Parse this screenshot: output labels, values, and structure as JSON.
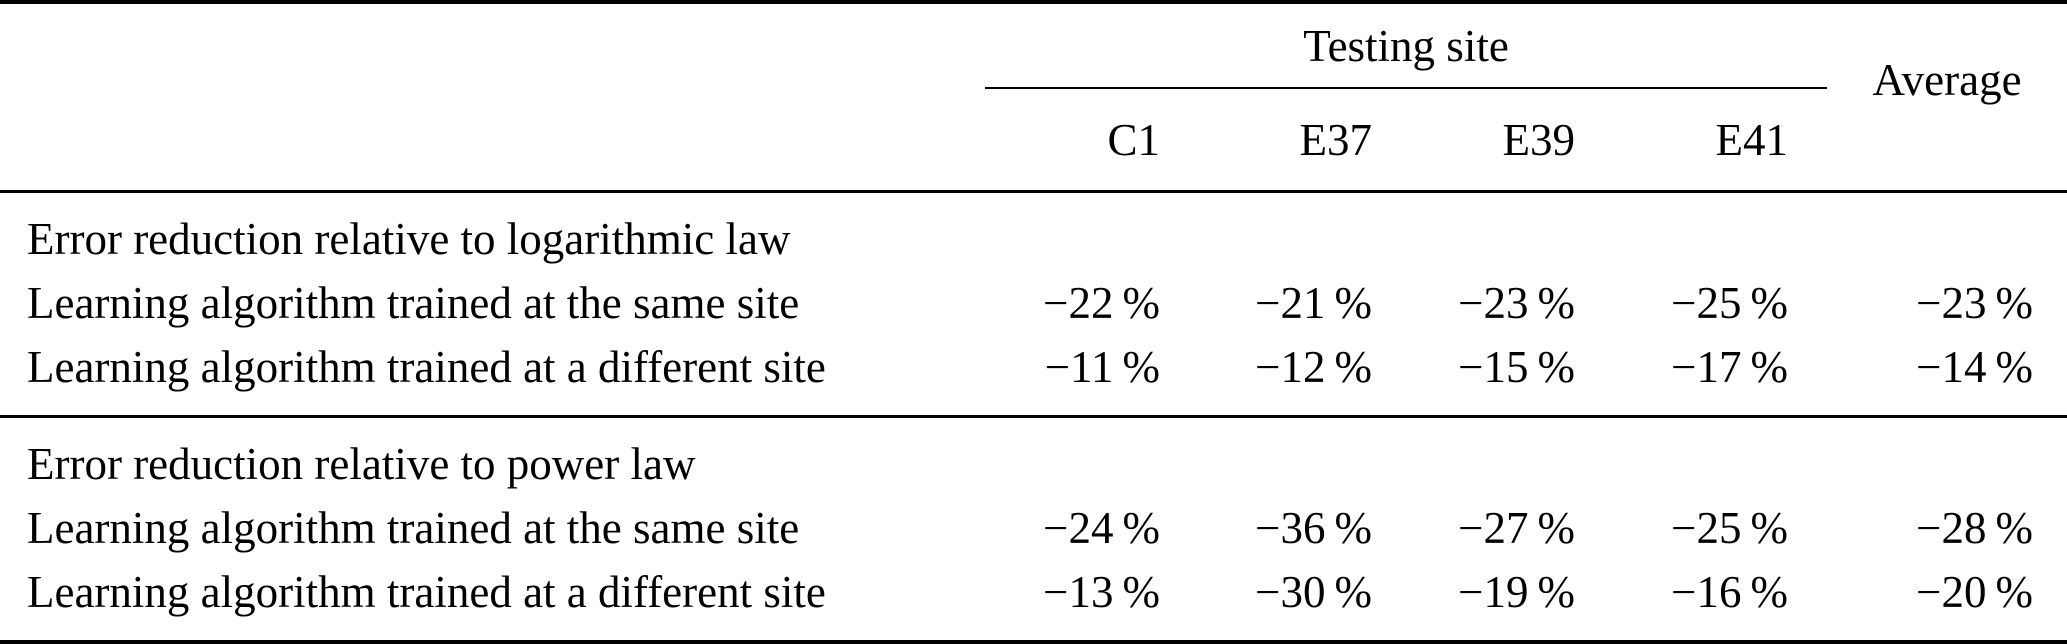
{
  "table": {
    "header": {
      "group_label": "Testing site",
      "columns": [
        "C1",
        "E37",
        "E39",
        "E41"
      ],
      "average_label": "Average"
    },
    "sections": [
      {
        "title": "Error reduction relative to logarithmic law",
        "rows": [
          {
            "label": "Learning algorithm trained at the same site",
            "values": [
              "−22 %",
              "−21 %",
              "−23 %",
              "−25 %",
              "−23 %"
            ]
          },
          {
            "label": "Learning algorithm trained at a different site",
            "values": [
              "−11 %",
              "−12 %",
              "−15 %",
              "−17 %",
              "−14 %"
            ]
          }
        ]
      },
      {
        "title": "Error reduction relative to power law",
        "rows": [
          {
            "label": "Learning algorithm trained at the same site",
            "values": [
              "−24 %",
              "−36 %",
              "−27 %",
              "−25 %",
              "−28 %"
            ]
          },
          {
            "label": "Learning algorithm trained at a different site",
            "values": [
              "−13 %",
              "−30 %",
              "−19 %",
              "−16 %",
              "−20 %"
            ]
          }
        ]
      }
    ]
  },
  "chart_data": {
    "type": "table",
    "columns": [
      "",
      "C1",
      "E37",
      "E39",
      "E41",
      "Average"
    ],
    "rows": [
      [
        "Error reduction relative to logarithmic law",
        "",
        "",
        "",
        "",
        ""
      ],
      [
        "Learning algorithm trained at the same site",
        "−22 %",
        "−21 %",
        "−23 %",
        "−25 %",
        "−23 %"
      ],
      [
        "Learning algorithm trained at a different site",
        "−11 %",
        "−12 %",
        "−15 %",
        "−17 %",
        "−14 %"
      ],
      [
        "Error reduction relative to power law",
        "",
        "",
        "",
        "",
        ""
      ],
      [
        "Learning algorithm trained at the same site",
        "−24 %",
        "−36 %",
        "−27 %",
        "−25 %",
        "−28 %"
      ],
      [
        "Learning algorithm trained at a different site",
        "−13 %",
        "−30 %",
        "−19 %",
        "−16 %",
        "−20 %"
      ]
    ]
  }
}
